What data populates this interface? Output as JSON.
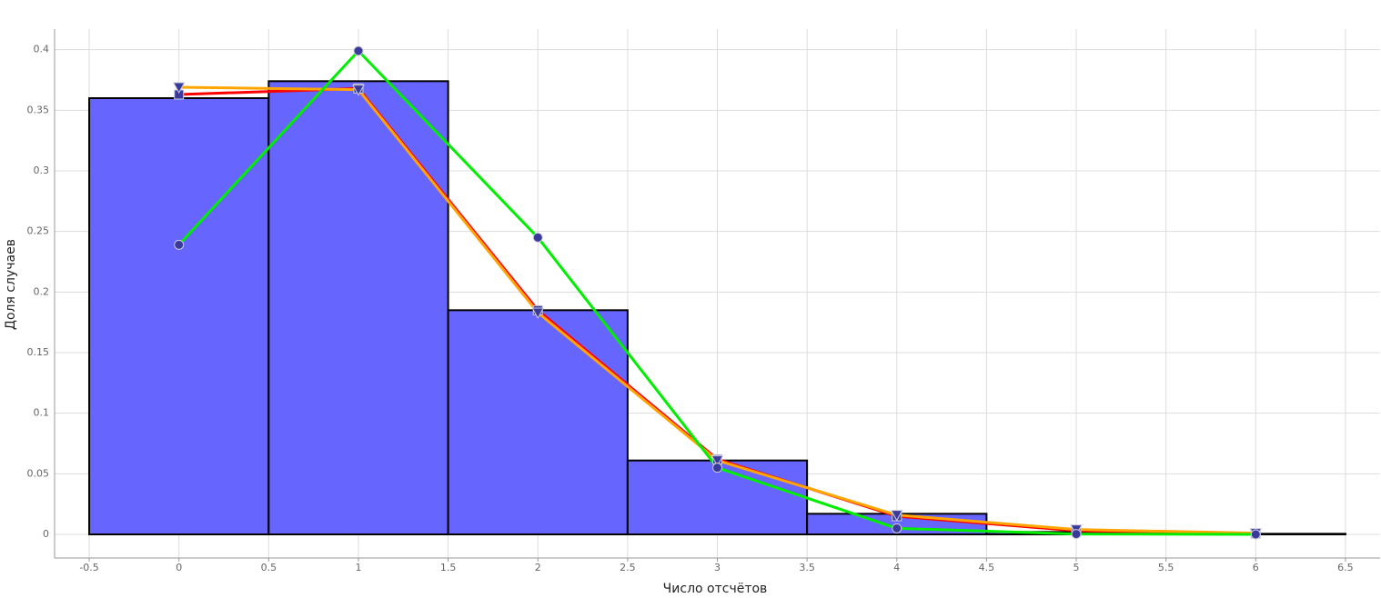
{
  "chart_data": {
    "type": "histogram",
    "x_label": "Число отсчётов",
    "y_label": "Доля случаев",
    "bins": [
      -0.5,
      0.5,
      1.5,
      2.5,
      3.5,
      4.5,
      5.5,
      6.5
    ],
    "values": [
      0.36,
      0.374,
      0.185,
      0.061,
      0.017,
      0.002,
      0.0005
    ],
    "color": "#6666ff",
    "x": [
      0,
      1,
      2,
      3,
      4,
      5,
      6
    ],
    "series": [
      {
        "color": "#ff0000",
        "marker": "square",
        "values": [
          0.363,
          0.368,
          0.185,
          0.062,
          0.015,
          0.003,
          0.0005
        ]
      },
      {
        "color": "#ffa500",
        "marker": "triangle-down",
        "values": [
          0.369,
          0.367,
          0.183,
          0.061,
          0.016,
          0.004,
          0.001
        ]
      },
      {
        "color": "#00ee00",
        "marker": "circle",
        "values": [
          0.239,
          0.399,
          0.245,
          0.055,
          0.005,
          0.0003,
          0
        ]
      }
    ],
    "xlim": [
      -0.693,
      6.693
    ],
    "ylim": [
      -0.0195,
      0.417
    ],
    "xticks": [
      -0.5,
      0,
      0.5,
      1,
      1.5,
      2,
      2.5,
      3,
      3.5,
      4,
      4.5,
      5,
      5.5,
      6,
      6.5
    ],
    "yticks": [
      0,
      0.05,
      0.1,
      0.15,
      0.2,
      0.25,
      0.3,
      0.35,
      0.4
    ],
    "grid": true
  }
}
